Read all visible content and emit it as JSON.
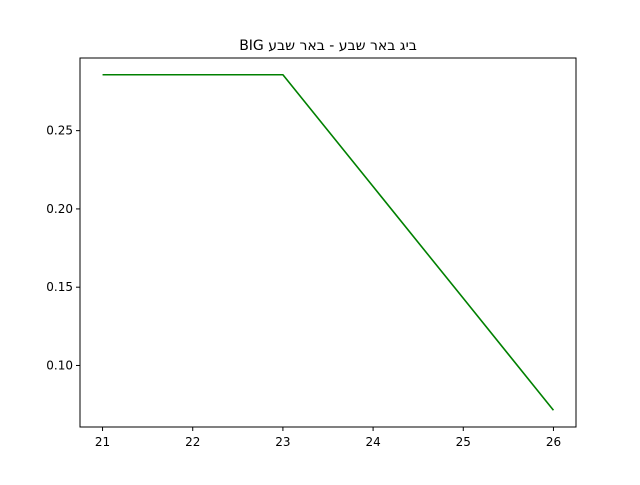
{
  "chart_data": {
    "type": "line",
    "title": "BIG ביג באר שבע - באר שבע",
    "xlabel": "",
    "ylabel": "",
    "x": [
      21,
      22,
      23,
      24,
      25,
      26
    ],
    "series": [
      {
        "values": [
          0.2857,
          0.2857,
          0.2857,
          0.2143,
          0.1429,
          0.0714
        ],
        "color": "#008000"
      }
    ],
    "xlim": [
      20.75,
      26.25
    ],
    "ylim": [
      0.0607,
      0.2964
    ],
    "x_ticks": [
      21,
      22,
      23,
      24,
      25,
      26
    ],
    "x_tick_labels": [
      "21",
      "22",
      "23",
      "24",
      "25",
      "26"
    ],
    "y_ticks": [
      0.1,
      0.15,
      0.2,
      0.25
    ],
    "y_tick_labels": [
      "0.10",
      "0.15",
      "0.20",
      "0.25"
    ],
    "grid": false,
    "legend": "none"
  }
}
